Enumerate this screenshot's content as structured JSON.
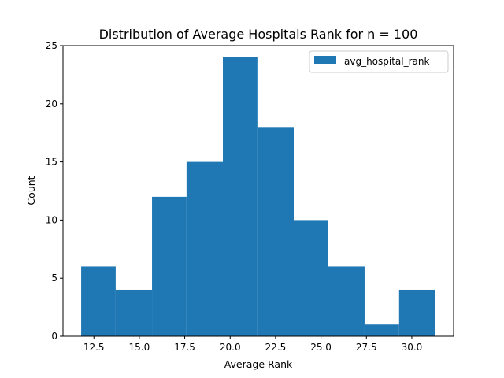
{
  "chart_data": {
    "type": "bar",
    "title": "Distribution of Average Hospitals Rank for n = 100",
    "xlabel": "Average Rank",
    "ylabel": "Count",
    "bins": [
      {
        "start": 11.8,
        "end": 13.7,
        "count": 6
      },
      {
        "start": 13.7,
        "end": 15.7,
        "count": 4
      },
      {
        "start": 15.7,
        "end": 17.6,
        "count": 12
      },
      {
        "start": 17.6,
        "end": 19.6,
        "count": 15
      },
      {
        "start": 19.6,
        "end": 21.5,
        "count": 24
      },
      {
        "start": 21.5,
        "end": 23.5,
        "count": 18
      },
      {
        "start": 23.5,
        "end": 25.4,
        "count": 10
      },
      {
        "start": 25.4,
        "end": 27.4,
        "count": 6
      },
      {
        "start": 27.4,
        "end": 29.3,
        "count": 1
      },
      {
        "start": 29.3,
        "end": 31.3,
        "count": 4
      }
    ],
    "xlim": [
      10.8,
      32.3
    ],
    "ylim": [
      0,
      25
    ],
    "xticks": [
      12.5,
      15.0,
      17.5,
      20.0,
      22.5,
      25.0,
      27.5,
      30.0
    ],
    "xtick_labels": [
      "12.5",
      "15.0",
      "17.5",
      "20.0",
      "22.5",
      "25.0",
      "27.5",
      "30.0"
    ],
    "yticks": [
      0,
      5,
      10,
      15,
      20,
      25
    ],
    "ytick_labels": [
      "0",
      "5",
      "10",
      "15",
      "20",
      "25"
    ],
    "legend": {
      "label": "avg_hospital_rank",
      "position": "top-right"
    },
    "color": "#1f77b4",
    "grid": false
  }
}
